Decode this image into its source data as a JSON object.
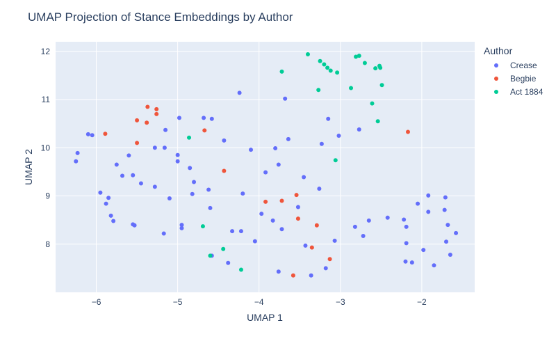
{
  "chart_data": {
    "type": "scatter",
    "title": "UMAP Projection of Stance Embeddings by Author",
    "xlabel": "UMAP 1",
    "ylabel": "UMAP 2",
    "xlim": [
      -6.5,
      -1.35
    ],
    "ylim": [
      7.0,
      12.2
    ],
    "x_ticks": [
      -6,
      -5,
      -4,
      -3,
      -2
    ],
    "x_tick_labels": [
      "−6",
      "−5",
      "−4",
      "−3",
      "−2"
    ],
    "y_ticks": [
      8,
      9,
      10,
      11,
      12
    ],
    "y_tick_labels": [
      "8",
      "9",
      "10",
      "11",
      "12"
    ],
    "grid": true,
    "background_color": "#e5ecf6",
    "legend": {
      "title": "Author",
      "position": "right"
    },
    "series": [
      {
        "name": "Crease",
        "color": "#636efa",
        "points": [
          [
            -6.25,
            9.72
          ],
          [
            -6.23,
            9.89
          ],
          [
            -6.1,
            10.28
          ],
          [
            -6.05,
            10.26
          ],
          [
            -5.95,
            9.07
          ],
          [
            -5.88,
            8.84
          ],
          [
            -5.85,
            8.96
          ],
          [
            -5.82,
            8.59
          ],
          [
            -5.79,
            8.48
          ],
          [
            -5.75,
            9.65
          ],
          [
            -5.68,
            9.42
          ],
          [
            -5.6,
            9.84
          ],
          [
            -5.55,
            9.43
          ],
          [
            -5.55,
            8.41
          ],
          [
            -5.53,
            8.39
          ],
          [
            -5.45,
            9.26
          ],
          [
            -5.28,
            9.19
          ],
          [
            -5.28,
            10.0
          ],
          [
            -5.16,
            10.0
          ],
          [
            -5.15,
            10.37
          ],
          [
            -5.17,
            8.22
          ],
          [
            -5.1,
            8.95
          ],
          [
            -5.0,
            9.85
          ],
          [
            -5.0,
            9.72
          ],
          [
            -4.98,
            10.62
          ],
          [
            -4.95,
            8.4
          ],
          [
            -4.95,
            8.33
          ],
          [
            -4.85,
            9.58
          ],
          [
            -4.8,
            9.29
          ],
          [
            -4.82,
            9.04
          ],
          [
            -4.68,
            10.62
          ],
          [
            -4.62,
            9.13
          ],
          [
            -4.6,
            8.75
          ],
          [
            -4.58,
            10.6
          ],
          [
            -4.58,
            7.76
          ],
          [
            -4.43,
            10.15
          ],
          [
            -4.38,
            7.61
          ],
          [
            -4.33,
            8.27
          ],
          [
            -4.24,
            11.14
          ],
          [
            -4.22,
            8.27
          ],
          [
            -4.2,
            9.05
          ],
          [
            -4.1,
            9.96
          ],
          [
            -4.05,
            8.06
          ],
          [
            -3.97,
            8.63
          ],
          [
            -3.92,
            9.49
          ],
          [
            -3.83,
            8.49
          ],
          [
            -3.8,
            9.99
          ],
          [
            -3.76,
            9.65
          ],
          [
            -3.76,
            7.43
          ],
          [
            -3.72,
            8.31
          ],
          [
            -3.68,
            11.02
          ],
          [
            -3.64,
            10.18
          ],
          [
            -3.52,
            8.77
          ],
          [
            -3.45,
            9.39
          ],
          [
            -3.43,
            7.97
          ],
          [
            -3.36,
            7.35
          ],
          [
            -3.26,
            9.15
          ],
          [
            -3.23,
            10.08
          ],
          [
            -3.18,
            7.5
          ],
          [
            -3.15,
            10.6
          ],
          [
            -3.07,
            8.07
          ],
          [
            -3.02,
            10.25
          ],
          [
            -2.82,
            8.36
          ],
          [
            -2.77,
            10.38
          ],
          [
            -2.72,
            8.17
          ],
          [
            -2.65,
            8.49
          ],
          [
            -2.42,
            8.55
          ],
          [
            -2.22,
            8.51
          ],
          [
            -2.2,
            7.64
          ],
          [
            -2.19,
            8.36
          ],
          [
            -2.19,
            8.02
          ],
          [
            -2.12,
            7.62
          ],
          [
            -2.05,
            8.84
          ],
          [
            -1.98,
            7.88
          ],
          [
            -1.92,
            8.67
          ],
          [
            -1.92,
            9.01
          ],
          [
            -1.85,
            7.56
          ],
          [
            -1.72,
            8.71
          ],
          [
            -1.71,
            8.97
          ],
          [
            -1.7,
            8.05
          ],
          [
            -1.68,
            8.4
          ],
          [
            -1.65,
            7.78
          ],
          [
            -1.58,
            8.23
          ]
        ]
      },
      {
        "name": "Begbie",
        "color": "#ef553b",
        "points": [
          [
            -5.89,
            10.29
          ],
          [
            -5.5,
            10.57
          ],
          [
            -5.5,
            10.1
          ],
          [
            -5.38,
            10.52
          ],
          [
            -5.37,
            10.85
          ],
          [
            -5.26,
            10.8
          ],
          [
            -5.26,
            10.7
          ],
          [
            -4.67,
            10.36
          ],
          [
            -4.43,
            9.52
          ],
          [
            -3.92,
            8.88
          ],
          [
            -3.72,
            8.9
          ],
          [
            -3.54,
            9.02
          ],
          [
            -3.52,
            8.53
          ],
          [
            -3.35,
            7.93
          ],
          [
            -3.29,
            8.39
          ],
          [
            -3.13,
            7.69
          ],
          [
            -3.58,
            7.35
          ],
          [
            -2.17,
            10.33
          ]
        ]
      },
      {
        "name": "Act 1884",
        "color": "#00cc96",
        "points": [
          [
            -3.4,
            11.94
          ],
          [
            -3.27,
            11.2
          ],
          [
            -3.25,
            11.8
          ],
          [
            -3.2,
            11.73
          ],
          [
            -3.16,
            11.66
          ],
          [
            -3.12,
            11.6
          ],
          [
            -3.04,
            11.56
          ],
          [
            -2.87,
            11.24
          ],
          [
            -2.81,
            11.89
          ],
          [
            -2.77,
            11.91
          ],
          [
            -2.7,
            11.76
          ],
          [
            -2.61,
            10.92
          ],
          [
            -2.57,
            11.65
          ],
          [
            -2.52,
            11.7
          ],
          [
            -2.51,
            11.66
          ],
          [
            -2.49,
            11.3
          ],
          [
            -2.54,
            10.55
          ],
          [
            -3.72,
            11.58
          ],
          [
            -3.06,
            9.74
          ],
          [
            -4.86,
            10.21
          ],
          [
            -4.69,
            8.37
          ],
          [
            -4.44,
            7.9
          ],
          [
            -4.6,
            7.76
          ],
          [
            -4.22,
            7.47
          ]
        ]
      }
    ]
  }
}
